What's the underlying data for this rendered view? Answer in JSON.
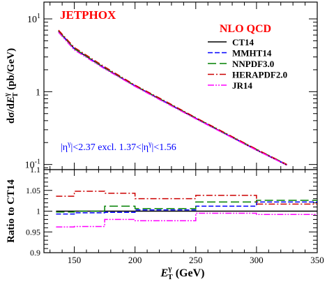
{
  "chart_data": [
    {
      "type": "line",
      "panel": "main",
      "generator_label": "JETPHOX",
      "legend_title": "NLO QCD",
      "ylabel": "dσ/dE_T^γ (pb/GeV)",
      "ylabel_parts": {
        "lead": "dσ/d",
        "E": "E",
        "sup": "γ",
        "sub": "T",
        "tail": " (pb/GeV)"
      },
      "yscale": "log",
      "ylim": [
        0.085,
        17
      ],
      "xlim": [
        125,
        350
      ],
      "y_ticks": [
        {
          "value": 0.1,
          "base": "10",
          "exp": "-1"
        },
        {
          "value": 1,
          "label": "1"
        },
        {
          "value": 10,
          "base": "10",
          "exp": "1"
        }
      ],
      "annotation": {
        "part1": "|η",
        "sup1": "γ",
        "part2": "|<2.37 excl.  1.37<|η",
        "sup2": "γ",
        "part3": "|<1.56"
      },
      "legend_placement": "top-right",
      "series": [
        {
          "name": "CT14",
          "color": "#000000",
          "style": "solid",
          "x": [
            137,
            150,
            175,
            200,
            225,
            250,
            275,
            300,
            325
          ],
          "y": [
            6.8,
            3.9,
            2.1,
            1.2,
            0.72,
            0.43,
            0.26,
            0.158,
            0.098
          ]
        },
        {
          "name": "MMHT14",
          "color": "#0000ff",
          "style": "dashed",
          "x": [
            137,
            150,
            175,
            200,
            225,
            250,
            275,
            300,
            325
          ],
          "y": [
            6.7,
            3.88,
            2.1,
            1.2,
            0.72,
            0.432,
            0.261,
            0.16,
            0.099
          ]
        },
        {
          "name": "NNPDF3.0",
          "color": "#008000",
          "style": "longdash",
          "x": [
            137,
            150,
            175,
            200,
            225,
            250,
            275,
            300,
            325
          ],
          "y": [
            6.8,
            3.9,
            2.12,
            1.21,
            0.725,
            0.437,
            0.264,
            0.161,
            0.1
          ]
        },
        {
          "name": "HERAPDF2.0",
          "color": "#cc0000",
          "style": "dashdot",
          "x": [
            137,
            150,
            175,
            200,
            225,
            250,
            275,
            300,
            325
          ],
          "y": [
            7.0,
            4.05,
            2.19,
            1.23,
            0.74,
            0.44,
            0.267,
            0.162,
            0.1
          ]
        },
        {
          "name": "JR14",
          "color": "#ff00ff",
          "style": "dashdotdot",
          "x": [
            137,
            150,
            175,
            200,
            225,
            250,
            275,
            300,
            325
          ],
          "y": [
            6.55,
            3.75,
            2.06,
            1.18,
            0.705,
            0.424,
            0.257,
            0.157,
            0.098
          ]
        }
      ]
    },
    {
      "type": "line",
      "panel": "ratio",
      "ylabel": "Ratio to CT14",
      "xlabel_parts": {
        "E": "E",
        "sup": "γ",
        "sub": "T",
        "tail": " (GeV)"
      },
      "xlim": [
        125,
        350
      ],
      "ylim": [
        0.9,
        1.1
      ],
      "x_ticks": [
        150,
        200,
        250,
        300,
        350
      ],
      "y_ticks": [
        0.9,
        0.95,
        1,
        1.05,
        1.1
      ],
      "y_tick_labels": [
        "0.9",
        "0.95",
        "1",
        "1.05",
        "1.1"
      ],
      "bin_edges": [
        135,
        150,
        175,
        200,
        250,
        300,
        350
      ],
      "series": [
        {
          "name": "CT14",
          "color": "#000000",
          "style": "solid",
          "values": [
            1.0,
            1.0,
            1.0,
            1.0,
            1.0,
            1.0
          ]
        },
        {
          "name": "MMHT14",
          "color": "#0000ff",
          "style": "dashed",
          "values": [
            0.993,
            0.996,
            0.997,
            1.003,
            1.012,
            1.022
          ]
        },
        {
          "name": "NNPDF3.0",
          "color": "#008000",
          "style": "longdash",
          "values": [
            0.998,
            1.0,
            1.012,
            1.006,
            1.022,
            1.026
          ]
        },
        {
          "name": "HERAPDF2.0",
          "color": "#cc0000",
          "style": "dashdot",
          "values": [
            1.036,
            1.048,
            1.043,
            1.03,
            1.038,
            1.017
          ]
        },
        {
          "name": "JR14",
          "color": "#ff00ff",
          "style": "dashdotdot",
          "values": [
            0.962,
            0.963,
            0.98,
            0.977,
            0.995,
            0.992
          ]
        }
      ]
    }
  ]
}
